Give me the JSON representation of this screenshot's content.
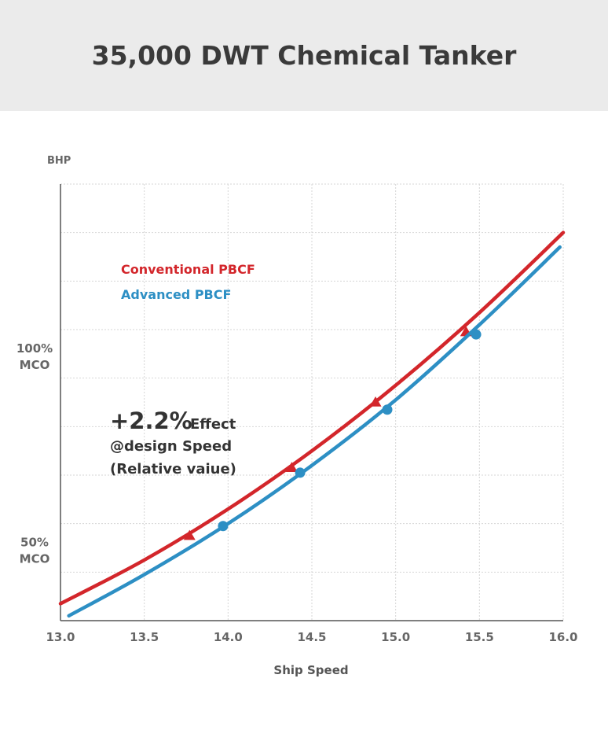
{
  "chart_data": {
    "type": "line",
    "title": "35,000 DWT Chemical Tanker",
    "xlabel": "Ship Speed",
    "ylabel": "BHP",
    "xlim": [
      13.0,
      16.0
    ],
    "ylim": [
      4.5,
      13.5
    ],
    "x_ticks": [
      13.0,
      13.5,
      14.0,
      14.5,
      15.0,
      15.5,
      16.0
    ],
    "x_tick_labels": [
      "13.0",
      "13.5",
      "14.0",
      "14.5",
      "15.0",
      "15.5",
      "16.0"
    ],
    "y_ticks": [
      {
        "value": 10,
        "lines": [
          "100%",
          "MCO"
        ]
      },
      {
        "value": 6,
        "lines": [
          "50%",
          "MCO"
        ]
      }
    ],
    "grid": true,
    "legend_position": "top-left",
    "series": [
      {
        "name": "Conventional PBCF",
        "color": "#d3262b",
        "marker": "triangle",
        "x": [
          13.0,
          13.5,
          14.0,
          14.5,
          15.0,
          15.5,
          16.0
        ],
        "y": [
          4.85,
          5.75,
          6.8,
          8.0,
          9.35,
          10.85,
          12.5
        ],
        "markers": [
          [
            13.77,
            6.25
          ],
          [
            14.38,
            7.65
          ],
          [
            14.88,
            9.0
          ],
          [
            15.42,
            10.45
          ]
        ]
      },
      {
        "name": "Advanced PBCF",
        "color": "#2d8fc4",
        "marker": "circle",
        "x": [
          13.05,
          13.5,
          14.0,
          14.5,
          15.0,
          15.5,
          15.98
        ],
        "y": [
          4.6,
          5.45,
          6.5,
          7.7,
          9.05,
          10.6,
          12.2
        ],
        "markers": [
          [
            13.97,
            6.45
          ],
          [
            14.43,
            7.55
          ],
          [
            14.95,
            8.85
          ],
          [
            15.48,
            10.4
          ]
        ]
      }
    ],
    "annotation": {
      "value": "+2.2%",
      "suffix": "Effect",
      "line2": "@design Speed",
      "line3": "(Relative vaiue)"
    }
  }
}
